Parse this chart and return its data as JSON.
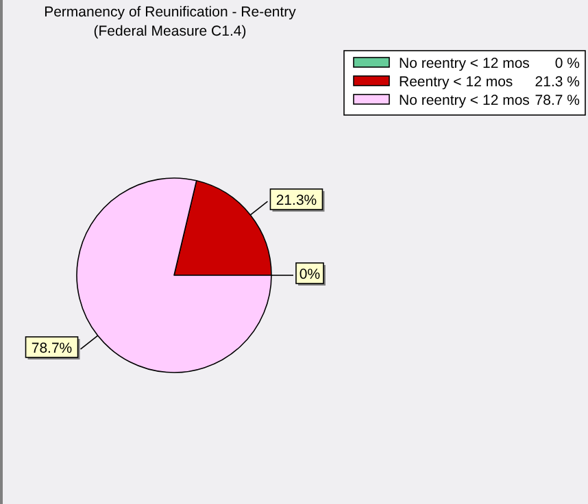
{
  "chart_data": {
    "type": "pie",
    "title": "Permanency of Reunification - Re-entry",
    "subtitle": "(Federal Measure C1.4)",
    "categories": [
      "No reentry < 12 mos",
      "Reentry < 12 mos",
      "No reentry < 12 mos"
    ],
    "values": [
      0,
      21.3,
      78.7
    ],
    "colors": [
      "#66cc99",
      "#cc0000",
      "#ffccff"
    ],
    "value_labels": [
      "0%",
      "21.3%",
      "78.7%"
    ],
    "legend": "top right"
  }
}
